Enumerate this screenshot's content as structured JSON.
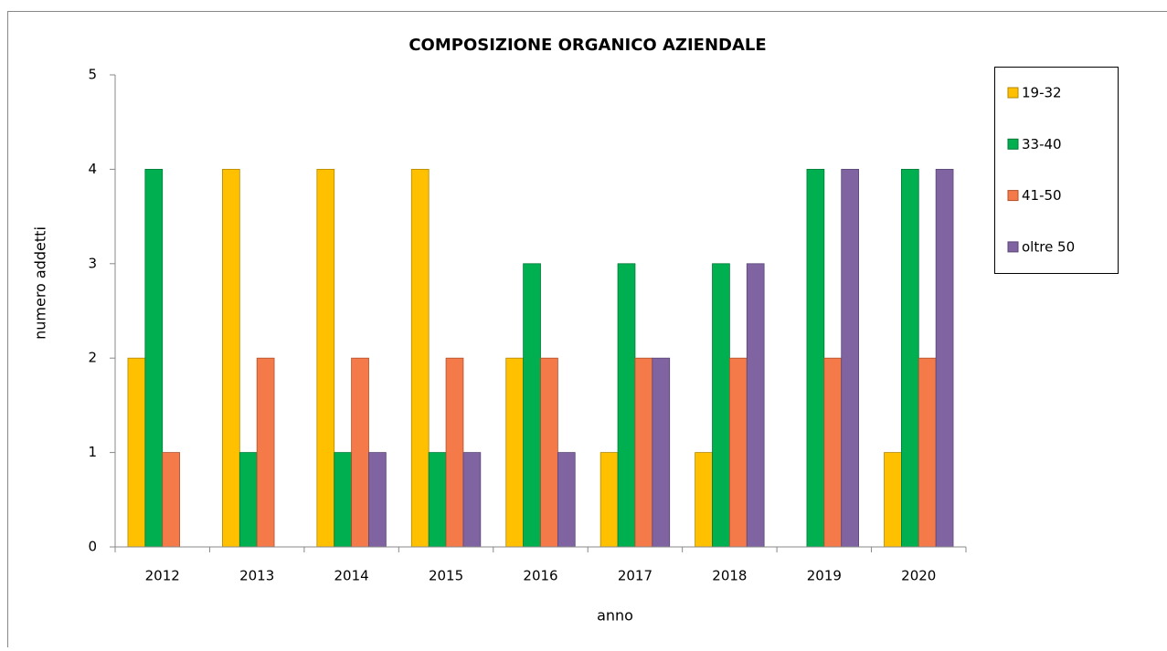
{
  "chart_data": {
    "type": "bar",
    "title": "COMPOSIZIONE ORGANICO  AZIENDALE",
    "x_label": "anno",
    "y_label": "numero addetti",
    "categories": [
      "2012",
      "2013",
      "2014",
      "2015",
      "2016",
      "2017",
      "2018",
      "2019",
      "2020"
    ],
    "series": [
      {
        "name": "19-32",
        "color": "#ffc000",
        "values": [
          2,
          4,
          4,
          4,
          2,
          1,
          1,
          0,
          1
        ]
      },
      {
        "name": "33-40",
        "color": "#00b050",
        "values": [
          4,
          1,
          1,
          1,
          3,
          3,
          3,
          4,
          4
        ]
      },
      {
        "name": "41-50",
        "color": "#f47a4a",
        "values": [
          1,
          2,
          2,
          2,
          2,
          2,
          2,
          2,
          2
        ]
      },
      {
        "name": "oltre 50",
        "color": "#8064a2",
        "values": [
          0,
          0,
          1,
          1,
          1,
          2,
          3,
          4,
          4
        ]
      }
    ],
    "ylim": [
      0,
      5
    ],
    "yticks": [
      0,
      1,
      2,
      3,
      4,
      5
    ],
    "legend": "right"
  }
}
